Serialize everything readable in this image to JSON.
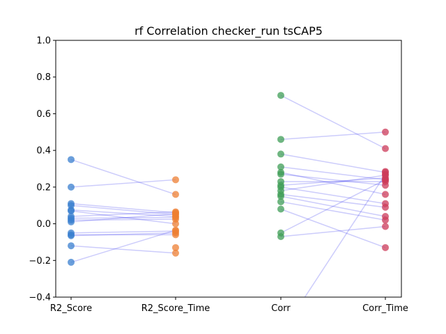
{
  "chart_data": {
    "type": "scatter",
    "title": "rf Correlation checker_run tsCAP5",
    "xlabel": "",
    "ylabel": "",
    "categories": [
      "R2_Score",
      "R2_Score_Time",
      "Corr",
      "Corr_Time"
    ],
    "ylim": [
      -0.4,
      1.0
    ],
    "yticks": [
      -0.4,
      -0.2,
      0.0,
      0.2,
      0.4,
      0.6,
      0.8,
      1.0
    ],
    "ytick_labels": [
      "−0.4",
      "−0.2",
      "0.0",
      "0.2",
      "0.4",
      "0.6",
      "0.8",
      "1.0"
    ],
    "grid": false,
    "legend": false,
    "colors": {
      "R2_Score": "#3a7fcf",
      "R2_Score_Time": "#ee7f33",
      "Corr": "#3f9e57",
      "Corr_Time": "#cc3b5a",
      "pair_lines": "#3333ee"
    },
    "pairs": [
      {
        "from": "R2_Score",
        "to": "R2_Score_Time",
        "links": [
          [
            0.35,
            0.16
          ],
          [
            0.2,
            0.24
          ],
          [
            0.11,
            0.06
          ],
          [
            0.1,
            0.05
          ],
          [
            0.075,
            0.04
          ],
          [
            0.07,
            0.0
          ],
          [
            0.04,
            0.065
          ],
          [
            0.03,
            0.035
          ],
          [
            0.02,
            0.025
          ],
          [
            0.01,
            0.055
          ],
          [
            -0.05,
            -0.04
          ],
          [
            -0.06,
            -0.06
          ],
          [
            -0.065,
            -0.05
          ],
          [
            -0.12,
            -0.16
          ],
          [
            -0.21,
            -0.035
          ]
        ],
        "extra_to": [
          -0.13
        ]
      },
      {
        "from": "Corr",
        "to": "Corr_Time",
        "links": [
          [
            0.7,
            0.41
          ],
          [
            0.46,
            0.5
          ],
          [
            0.38,
            0.28
          ],
          [
            0.31,
            0.24
          ],
          [
            0.28,
            0.16
          ],
          [
            0.27,
            0.21
          ],
          [
            0.23,
            0.23
          ],
          [
            0.21,
            0.25
          ],
          [
            0.2,
            0.11
          ],
          [
            0.18,
            0.265
          ],
          [
            0.16,
            0.09
          ],
          [
            0.15,
            0.04
          ],
          [
            0.12,
            0.02
          ],
          [
            0.08,
            -0.13
          ],
          [
            -0.05,
            0.24
          ],
          [
            -0.07,
            -0.015
          ],
          [
            -0.6,
            0.27
          ]
        ],
        "extra_to": [
          0.285
        ]
      }
    ]
  }
}
